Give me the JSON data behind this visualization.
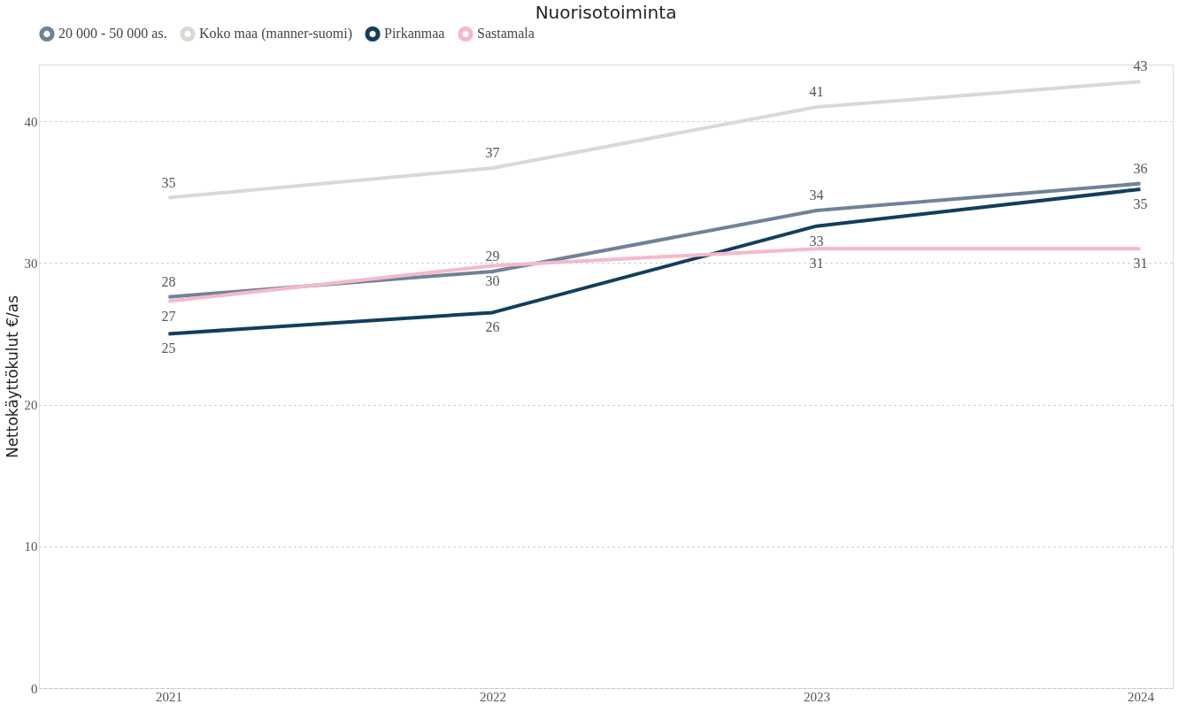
{
  "chart_data": {
    "type": "line",
    "title": "Nuorisotoiminta",
    "ylabel": "Nettokäyttökulut €/as",
    "categories": [
      "2021",
      "2022",
      "2023",
      "2024"
    ],
    "series": [
      {
        "name": "20 000 - 50 000 as.",
        "color": "#6f8298",
        "values": [
          27.6,
          29.4,
          33.7,
          35.6
        ],
        "value_labels": [
          "28",
          "29",
          "34",
          "36"
        ]
      },
      {
        "name": "Koko maa (manner-suomi)",
        "color": "#dcd8d2",
        "values": [
          34.6,
          36.7,
          41.0,
          42.8
        ],
        "value_labels": [
          "35",
          "37",
          "41",
          "43"
        ]
      },
      {
        "name": "Pirkanmaa",
        "color": "#123e5e",
        "values": [
          25.0,
          26.5,
          32.6,
          35.2
        ],
        "value_labels": [
          "25",
          "26",
          "33",
          "35"
        ]
      },
      {
        "name": "Sastamala",
        "color": "#f5b8cd",
        "values": [
          27.3,
          29.8,
          31.0,
          31.0
        ],
        "value_labels": [
          "27",
          "30",
          "31",
          "31"
        ]
      }
    ],
    "ylim": [
      0,
      44
    ],
    "yticks": [
      0,
      10,
      20,
      30,
      40
    ],
    "grid": "y",
    "legend": "top left",
    "marker": "none",
    "line_style": "solid"
  }
}
